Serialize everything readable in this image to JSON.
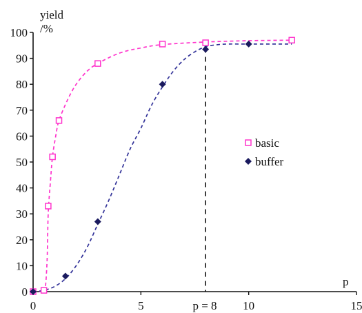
{
  "chart_data": {
    "type": "scatter",
    "ylabel": "yield",
    "ylabel_unit": "/%",
    "xlabel": "p",
    "xlim": [
      0,
      15
    ],
    "ylim": [
      0,
      100
    ],
    "xticks": [
      "0",
      "5",
      "10",
      "15"
    ],
    "yticks": [
      "0",
      "10",
      "20",
      "30",
      "40",
      "50",
      "60",
      "70",
      "80",
      "90",
      "100"
    ],
    "grid": false,
    "legend_position": "right",
    "series": [
      {
        "name": "basic",
        "color": "#ff33cc",
        "marker": "square-open",
        "line": "dashed",
        "points": [
          [
            0,
            0
          ],
          [
            0.5,
            0.5
          ],
          [
            0.7,
            33
          ],
          [
            0.9,
            52
          ],
          [
            1.2,
            66
          ],
          [
            3,
            88
          ],
          [
            6,
            95.5
          ],
          [
            8,
            96
          ],
          [
            12,
            97
          ]
        ],
        "curve": [
          [
            0,
            0
          ],
          [
            0.4,
            0
          ],
          [
            0.55,
            0.5
          ],
          [
            0.65,
            12
          ],
          [
            0.7,
            30
          ],
          [
            0.8,
            42
          ],
          [
            0.9,
            52
          ],
          [
            1.05,
            60
          ],
          [
            1.2,
            66
          ],
          [
            1.6,
            74
          ],
          [
            2.0,
            80
          ],
          [
            2.5,
            85
          ],
          [
            3.0,
            88
          ],
          [
            4.0,
            92
          ],
          [
            5.0,
            94
          ],
          [
            6.0,
            95.3
          ],
          [
            8.0,
            96.3
          ],
          [
            10.0,
            96.8
          ],
          [
            12.0,
            97
          ]
        ]
      },
      {
        "name": "buffer",
        "color": "#1a1a5e",
        "line_color": "#333399",
        "marker": "diamond-filled",
        "line": "dashed",
        "points": [
          [
            0,
            0
          ],
          [
            1.5,
            6
          ],
          [
            3,
            27
          ],
          [
            6,
            80
          ],
          [
            8,
            93.5
          ],
          [
            10,
            95.5
          ]
        ],
        "curve": [
          [
            0,
            0
          ],
          [
            0.5,
            0.5
          ],
          [
            1.0,
            2
          ],
          [
            1.5,
            5
          ],
          [
            2.0,
            10
          ],
          [
            2.5,
            17
          ],
          [
            3.0,
            26
          ],
          [
            3.5,
            35
          ],
          [
            4.0,
            45
          ],
          [
            4.5,
            55
          ],
          [
            5.0,
            63
          ],
          [
            5.5,
            72
          ],
          [
            6.0,
            79
          ],
          [
            6.5,
            85
          ],
          [
            7.0,
            89.5
          ],
          [
            7.5,
            92.5
          ],
          [
            8.0,
            94.5
          ],
          [
            8.5,
            95.2
          ],
          [
            9.0,
            95.5
          ],
          [
            10.0,
            95.5
          ],
          [
            12.0,
            95.5
          ]
        ]
      }
    ],
    "reference_line": {
      "x": 8,
      "y_top": 94,
      "label": "p = 8"
    }
  }
}
